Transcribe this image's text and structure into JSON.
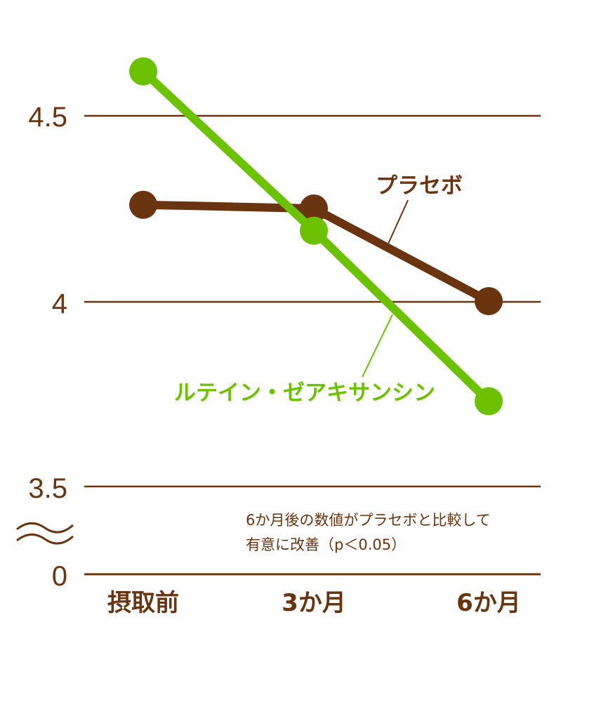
{
  "chart_data": {
    "type": "line",
    "categories": [
      "摂取前",
      "3か月",
      "6か月"
    ],
    "y_ticks": [
      "4.5",
      "4",
      "3.5",
      "0"
    ],
    "ylim": [
      0,
      4.7
    ],
    "axis_break": true,
    "grid": true,
    "series": [
      {
        "name": "プラセボ",
        "values": [
          4.26,
          4.25,
          4.0
        ],
        "color": "#6b3410"
      },
      {
        "name": "ルテイン・ゼアキサンシン",
        "values": [
          4.62,
          4.19,
          3.73
        ],
        "color": "#6cc100"
      }
    ],
    "annotation": [
      "6か月後の数値がプラセボと比較して",
      "有意に改善（p＜0.05）"
    ]
  }
}
